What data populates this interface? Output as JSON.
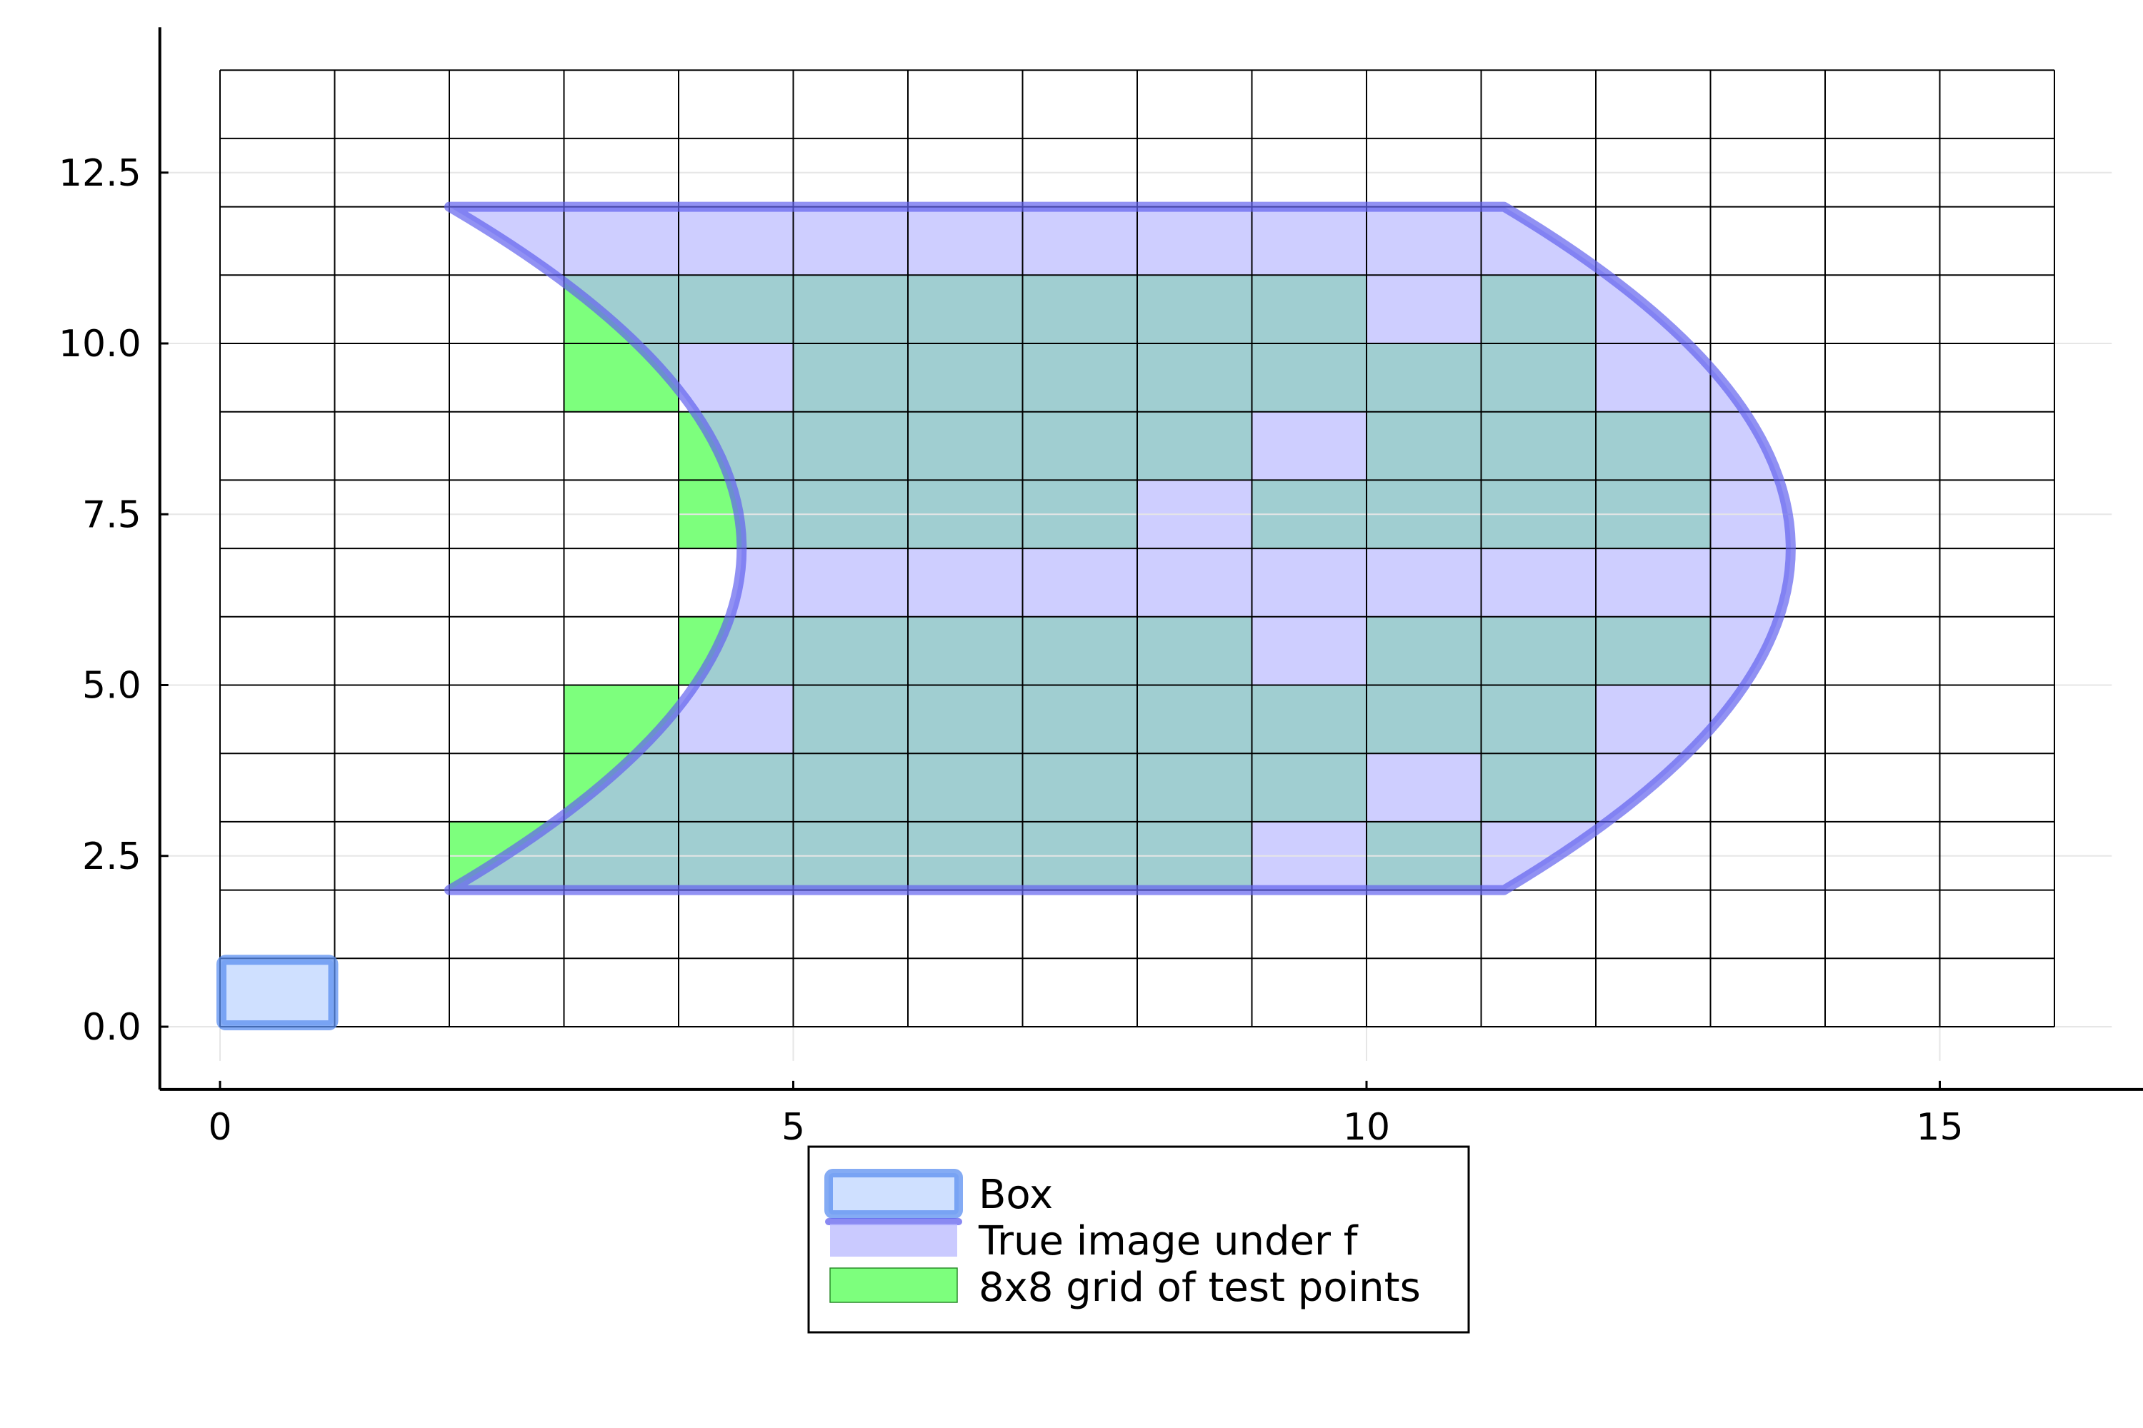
{
  "chart_data": {
    "type": "area",
    "title": "",
    "xlabel": "",
    "ylabel": "",
    "xlim": [
      -0.5,
      16.5
    ],
    "ylim": [
      -0.5,
      14.0
    ],
    "xticks": [
      0,
      5,
      10,
      15
    ],
    "xtick_labels": [
      "0",
      "5",
      "10",
      "15"
    ],
    "yticks": [
      0,
      2.5,
      5,
      7.5,
      10,
      12.5
    ],
    "ytick_labels": [
      "0.0",
      "2.5",
      "5.0",
      "7.5",
      "10.0",
      "12.5"
    ],
    "grid": true,
    "legend_position": "bottom-center outside",
    "grid_cells": {
      "x_range": [
        0,
        16
      ],
      "y_range": [
        0,
        14
      ],
      "x_step": 1,
      "y_step": 1
    },
    "series": [
      {
        "name": "Box",
        "kind": "rectangle",
        "x": [
          0,
          1
        ],
        "y": [
          0,
          1
        ],
        "fill": "#cfe0ff",
        "stroke": "#5b8ff0"
      },
      {
        "name": "True image under f",
        "kind": "region",
        "fill": "#b3b3ff",
        "stroke": "#6262ee",
        "boundary": {
          "top_y": 12,
          "bottom_y": 2,
          "left_vertex": [
            2,
            12
          ],
          "left_bottom": [
            2,
            2
          ],
          "left_apex": [
            4.55,
            7
          ],
          "right_top": [
            11.2,
            12
          ],
          "right_bottom": [
            11.2,
            2
          ],
          "right_apex": [
            13.7,
            7
          ]
        },
        "covered_cells": [
          [
            2,
            11
          ],
          [
            3,
            11
          ],
          [
            4,
            11
          ],
          [
            5,
            11
          ],
          [
            6,
            11
          ],
          [
            7,
            11
          ],
          [
            8,
            11
          ],
          [
            9,
            11
          ],
          [
            10,
            11
          ],
          [
            11,
            11
          ],
          [
            10,
            10
          ],
          [
            4,
            9
          ],
          [
            12,
            9
          ],
          [
            9,
            8
          ],
          [
            8,
            7
          ],
          [
            13,
            7
          ],
          [
            4,
            6
          ],
          [
            5,
            6
          ],
          [
            6,
            6
          ],
          [
            7,
            6
          ],
          [
            8,
            6
          ],
          [
            9,
            6
          ],
          [
            10,
            6
          ],
          [
            11,
            6
          ],
          [
            12,
            6
          ],
          [
            13,
            6
          ],
          [
            9,
            5
          ],
          [
            4,
            4
          ],
          [
            12,
            4
          ],
          [
            10,
            3
          ],
          [
            9,
            2
          ],
          [
            11,
            2
          ]
        ]
      },
      {
        "name": "8x8 grid of test points",
        "kind": "cells",
        "fill": "#66ff66",
        "cells": [
          [
            3,
            10
          ],
          [
            4,
            10
          ],
          [
            5,
            10
          ],
          [
            6,
            10
          ],
          [
            7,
            10
          ],
          [
            8,
            10
          ],
          [
            9,
            10
          ],
          [
            11,
            10
          ],
          [
            3,
            9
          ],
          [
            5,
            9
          ],
          [
            6,
            9
          ],
          [
            7,
            9
          ],
          [
            8,
            9
          ],
          [
            9,
            9
          ],
          [
            10,
            9
          ],
          [
            11,
            9
          ],
          [
            4,
            8
          ],
          [
            5,
            8
          ],
          [
            6,
            8
          ],
          [
            7,
            8
          ],
          [
            8,
            8
          ],
          [
            10,
            8
          ],
          [
            11,
            8
          ],
          [
            12,
            8
          ],
          [
            4,
            7
          ],
          [
            5,
            7
          ],
          [
            6,
            7
          ],
          [
            7,
            7
          ],
          [
            9,
            7
          ],
          [
            10,
            7
          ],
          [
            11,
            7
          ],
          [
            12,
            7
          ],
          [
            4,
            5
          ],
          [
            5,
            5
          ],
          [
            6,
            5
          ],
          [
            7,
            5
          ],
          [
            8,
            5
          ],
          [
            10,
            5
          ],
          [
            11,
            5
          ],
          [
            12,
            5
          ],
          [
            3,
            4
          ],
          [
            5,
            4
          ],
          [
            6,
            4
          ],
          [
            7,
            4
          ],
          [
            8,
            4
          ],
          [
            9,
            4
          ],
          [
            10,
            4
          ],
          [
            11,
            4
          ],
          [
            3,
            3
          ],
          [
            4,
            3
          ],
          [
            5,
            3
          ],
          [
            6,
            3
          ],
          [
            7,
            3
          ],
          [
            8,
            3
          ],
          [
            9,
            3
          ],
          [
            11,
            3
          ],
          [
            2,
            2
          ],
          [
            3,
            2
          ],
          [
            4,
            2
          ],
          [
            5,
            2
          ],
          [
            6,
            2
          ],
          [
            7,
            2
          ],
          [
            8,
            2
          ],
          [
            10,
            2
          ]
        ]
      }
    ]
  },
  "legend": {
    "items": [
      {
        "label": "Box"
      },
      {
        "label": "True image under f"
      },
      {
        "label": "8x8 grid of test points"
      }
    ]
  }
}
